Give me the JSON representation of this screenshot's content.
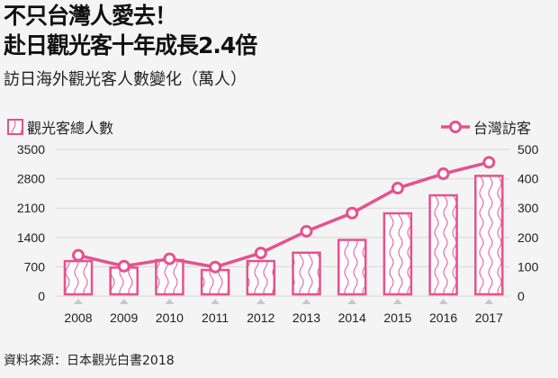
{
  "title_line1": "不只台灣人愛去！",
  "title_line2": "赴日觀光客十年成長2.4倍",
  "subtitle": "訪日海外觀光客人數變化（萬人）",
  "source": "資料來源：日本觀光白書2018",
  "colors": {
    "accent": "#e5528d",
    "grid": "#d6d6d6",
    "marker": "#c8c8c8"
  },
  "chart_data": {
    "type": "bar",
    "categories": [
      "2008",
      "2009",
      "2010",
      "2011",
      "2012",
      "2013",
      "2014",
      "2015",
      "2016",
      "2017"
    ],
    "series": [
      {
        "name": "觀光客總人數",
        "type": "bar",
        "axis": "left",
        "values": [
          835,
          679,
          861,
          622,
          836,
          1036,
          1341,
          1974,
          2404,
          2869
        ]
      },
      {
        "name": "台灣訪客",
        "type": "line",
        "axis": "right",
        "values": [
          139,
          102,
          127,
          99,
          147,
          221,
          283,
          368,
          417,
          456
        ]
      }
    ],
    "left_axis": {
      "ylim": [
        0,
        3500
      ],
      "ticks": [
        "0",
        "700",
        "1400",
        "2100",
        "2800",
        "3500"
      ]
    },
    "right_axis": {
      "ylim": [
        0,
        500
      ],
      "ticks": [
        "0",
        "100",
        "200",
        "300",
        "400",
        "500"
      ]
    },
    "legend_placement": "top",
    "grid": true
  }
}
